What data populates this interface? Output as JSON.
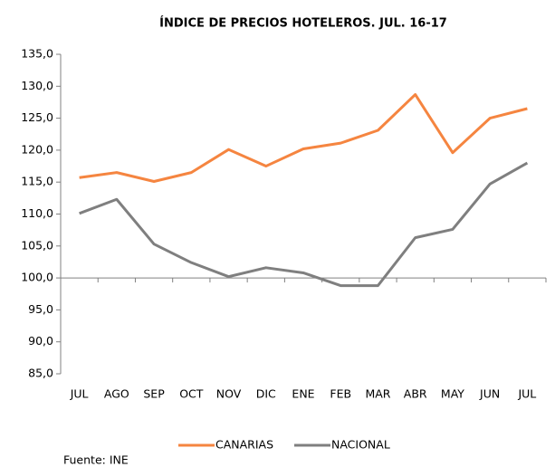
{
  "chart_data": {
    "type": "line",
    "title": "ÍNDICE DE PRECIOS HOTELEROS. JUL. 16-17",
    "categories": [
      "JUL",
      "AGO",
      "SEP",
      "OCT",
      "NOV",
      "DIC",
      "ENE",
      "FEB",
      "MAR",
      "ABR",
      "MAY",
      "JUN",
      "JUL"
    ],
    "series": [
      {
        "name": "CANARIAS",
        "color": "#f58540",
        "values": [
          115.7,
          116.5,
          115.1,
          116.5,
          120.1,
          117.5,
          120.2,
          121.1,
          123.1,
          128.7,
          119.6,
          125.0,
          126.5
        ]
      },
      {
        "name": "NACIONAL",
        "color": "#7f7f7f",
        "values": [
          110.1,
          112.3,
          105.3,
          102.4,
          100.2,
          101.6,
          100.8,
          98.8,
          98.8,
          106.3,
          107.6,
          114.7,
          118.0
        ]
      }
    ],
    "ylim": [
      85,
      135
    ],
    "yticks": [
      {
        "value": 85,
        "label": "85,0"
      },
      {
        "value": 90,
        "label": "90,0"
      },
      {
        "value": 95,
        "label": "95,0"
      },
      {
        "value": 100,
        "label": "100,0"
      },
      {
        "value": 105,
        "label": "105,0"
      },
      {
        "value": 110,
        "label": "110,0"
      },
      {
        "value": 115,
        "label": "115,0"
      },
      {
        "value": 120,
        "label": "120,0"
      },
      {
        "value": 125,
        "label": "125,0"
      },
      {
        "value": 130,
        "label": "130,0"
      },
      {
        "value": 135,
        "label": "135,0"
      }
    ],
    "x_axis_crosses": 100,
    "grid": false,
    "legend": "bottom",
    "source": "Fuente: INE"
  }
}
